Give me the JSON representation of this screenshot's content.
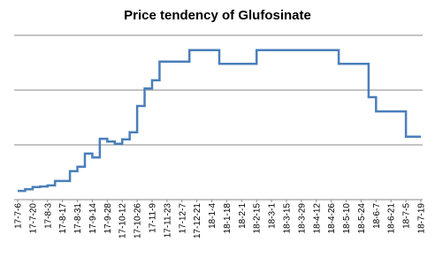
{
  "chart_data": {
    "type": "line",
    "title": "Price tendency of Glufosinate",
    "step": true,
    "categories": [
      "17-7-6",
      null,
      "17-7-20",
      null,
      "17-8-3",
      null,
      "17-8-17",
      null,
      "17-8-31",
      null,
      "17-9-14",
      null,
      "17-9-28",
      null,
      "17-10-12",
      null,
      "17-10-26",
      null,
      "17-11-9",
      null,
      "17-11-23",
      null,
      "17-12-7",
      null,
      "17-12-21",
      null,
      "18-1-4",
      null,
      "18-1-18",
      null,
      "18-2-1",
      null,
      "18-2-15",
      null,
      "18-3-1",
      null,
      "18-3-15",
      null,
      "18-3-29",
      null,
      "18-4-12",
      null,
      "18-4-26",
      null,
      "18-5-10",
      null,
      "18-5-24",
      null,
      "18-6-7",
      null,
      "18-6-21",
      null,
      "18-7-5",
      null,
      "18-7-19"
    ],
    "series": [
      {
        "name": "Glufosinate",
        "color": "#4a7ebb",
        "values": [
          0.16,
          0.19,
          0.23,
          0.24,
          0.26,
          0.34,
          0.34,
          0.52,
          0.6,
          0.84,
          0.77,
          1.11,
          1.06,
          1.02,
          1.1,
          1.23,
          1.71,
          2.03,
          2.18,
          2.52,
          2.52,
          2.52,
          2.52,
          2.73,
          2.73,
          2.73,
          2.73,
          2.48,
          2.48,
          2.48,
          2.48,
          2.48,
          2.73,
          2.73,
          2.73,
          2.73,
          2.73,
          2.73,
          2.73,
          2.73,
          2.73,
          2.73,
          2.73,
          2.48,
          2.48,
          2.48,
          2.48,
          1.87,
          1.61,
          1.61,
          1.61,
          1.61,
          1.15,
          1.15,
          1.15
        ]
      }
    ],
    "ylim": [
      0,
      3
    ],
    "yticks": [
      0,
      1,
      2,
      3
    ],
    "show_ytick_labels": false,
    "grid": true
  }
}
